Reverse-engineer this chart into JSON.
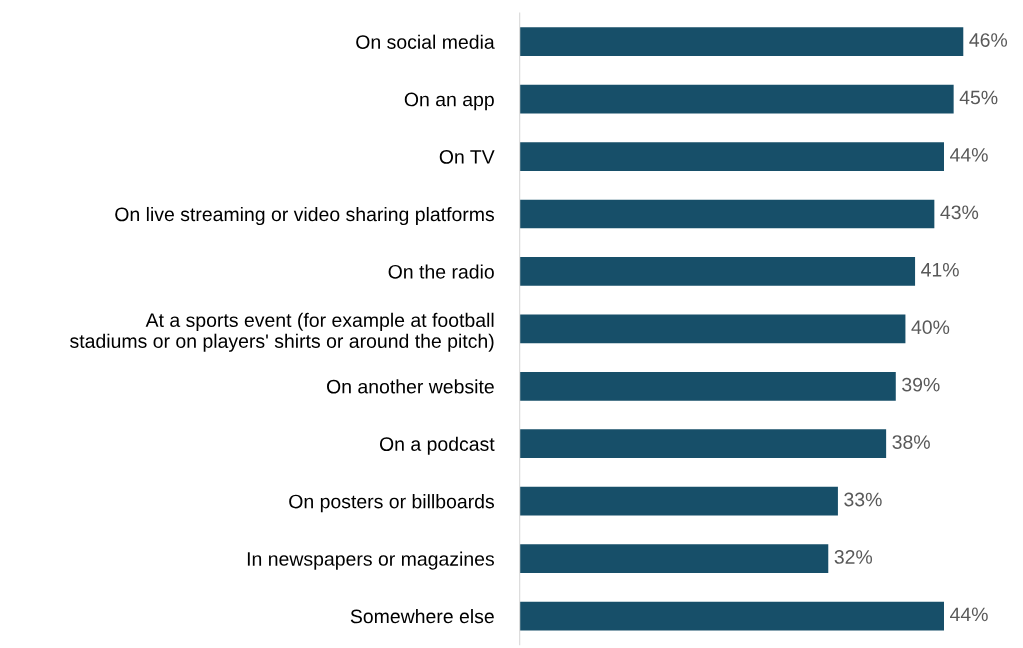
{
  "chart_data": {
    "type": "bar",
    "orientation": "horizontal",
    "categories": [
      "On social media",
      "On an app",
      "On TV",
      "On live streaming or video sharing platforms",
      "On the radio",
      "At a sports event (for example at football\nstadiums or on players' shirts or around the pitch)",
      "On another website",
      "On a podcast",
      "On posters or billboards",
      "In newspapers or magazines",
      "Somewhere else"
    ],
    "values": [
      46,
      45,
      44,
      43,
      41,
      40,
      39,
      38,
      33,
      32,
      44
    ],
    "value_labels": [
      "46%",
      "45%",
      "44%",
      "43%",
      "41%",
      "40%",
      "39%",
      "38%",
      "33%",
      "32%",
      "44%"
    ],
    "color": "#174f69",
    "grid": false,
    "legend": false
  }
}
